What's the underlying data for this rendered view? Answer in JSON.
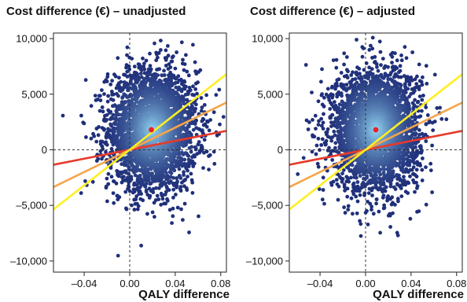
{
  "chart_data": [
    {
      "type": "scatter",
      "title": "Cost difference (€) – unadjusted",
      "xlabel": "QALY difference",
      "ylabel": "",
      "xlim": [
        -0.067,
        0.085
      ],
      "ylim": [
        -11000,
        10500
      ],
      "xticks": [
        -0.04,
        0.0,
        0.04,
        0.08
      ],
      "xtick_labels": [
        "–0.04",
        "0.00",
        "0.04",
        "0.08"
      ],
      "yticks": [
        -10000,
        -5000,
        0,
        5000,
        10000
      ],
      "ytick_labels": [
        "–10,000",
        "–5,000",
        "0",
        "5,000",
        "10,000"
      ],
      "grid": false,
      "reference_lines": {
        "x": 0,
        "y": 0
      },
      "point_cloud": {
        "center": [
          0.02,
          1800
        ],
        "sd": [
          0.0195,
          2700
        ],
        "n": 3000,
        "color_edge": "#1f2f7a",
        "color_center": "#8fd0ee"
      },
      "point_estimate": {
        "x": 0.019,
        "y": 1800,
        "color": "#e8202a"
      },
      "threshold_lines": [
        {
          "slope": 20000,
          "color": "#e63a2a"
        },
        {
          "slope": 50000,
          "color": "#f5a54a"
        },
        {
          "slope": 80000,
          "color": "#ffee22"
        }
      ]
    },
    {
      "type": "scatter",
      "title": "Cost difference (€) – adjusted",
      "xlabel": "QALY difference",
      "ylabel": "",
      "xlim": [
        -0.067,
        0.085
      ],
      "ylim": [
        -11000,
        10500
      ],
      "xticks": [
        -0.04,
        0.0,
        0.04,
        0.08
      ],
      "xtick_labels": [
        "–0.04",
        "0.00",
        "0.04",
        "0.08"
      ],
      "yticks": [
        -10000,
        -5000,
        0,
        5000,
        10000
      ],
      "ytick_labels": [
        "–10,000",
        "–5,000",
        "0",
        "5,000",
        "10,000"
      ],
      "grid": false,
      "reference_lines": {
        "x": 0,
        "y": 0
      },
      "point_cloud": {
        "center": [
          0.009,
          1800
        ],
        "sd": [
          0.019,
          2700
        ],
        "n": 3000,
        "color_edge": "#1f2f7a",
        "color_center": "#8fd0ee"
      },
      "point_estimate": {
        "x": 0.009,
        "y": 1800,
        "color": "#e8202a"
      },
      "threshold_lines": [
        {
          "slope": 20000,
          "color": "#e63a2a"
        },
        {
          "slope": 50000,
          "color": "#f5a54a"
        },
        {
          "slope": 80000,
          "color": "#ffee22"
        }
      ]
    }
  ]
}
